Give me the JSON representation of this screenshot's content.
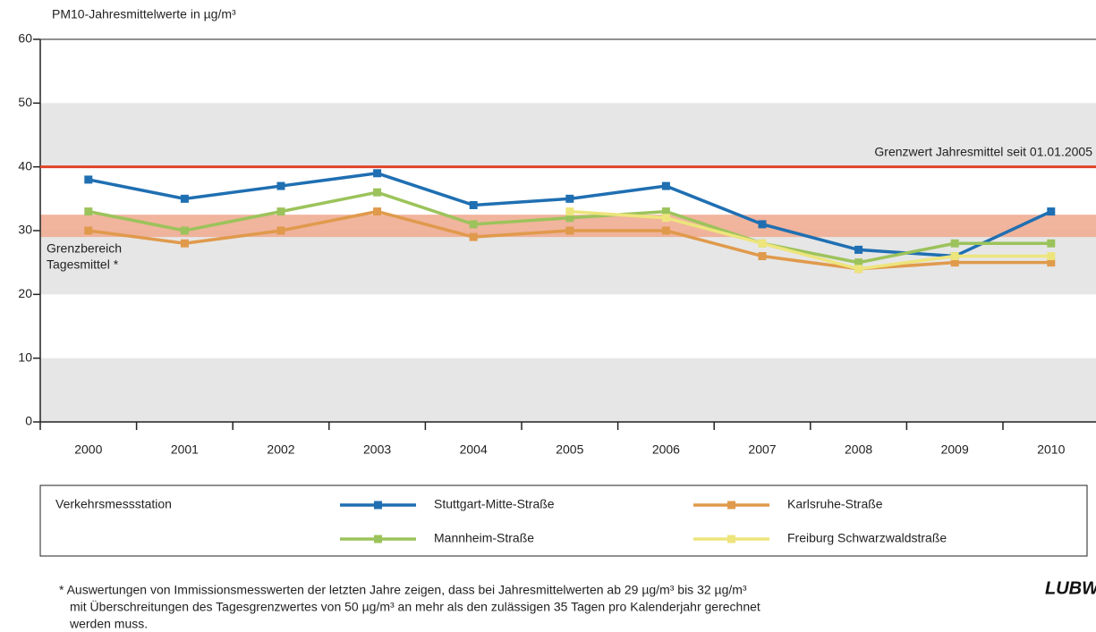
{
  "chart_data": {
    "type": "line",
    "y_axis_label": "PM10-Jahresmittelwerte in µg/m³",
    "categories": [
      "2000",
      "2001",
      "2002",
      "2003",
      "2004",
      "2005",
      "2006",
      "2007",
      "2008",
      "2009",
      "2010"
    ],
    "series": [
      {
        "name": "Stuttgart-Mitte-Straße",
        "color": "#1f6fb2",
        "values": [
          38,
          35,
          37,
          39,
          34,
          35,
          37,
          31,
          27,
          26,
          33
        ]
      },
      {
        "name": "Karlsruhe-Straße",
        "color": "#e09a4c",
        "values": [
          30,
          28,
          30,
          33,
          29,
          30,
          30,
          26,
          24,
          25,
          25
        ]
      },
      {
        "name": "Mannheim-Straße",
        "color": "#9cc35b",
        "values": [
          33,
          30,
          33,
          36,
          31,
          32,
          33,
          28,
          25,
          28,
          28
        ]
      },
      {
        "name": "Freiburg Schwarzwaldstraße",
        "color": "#ede57c",
        "values": [
          null,
          null,
          null,
          null,
          null,
          33,
          32,
          28,
          24,
          26,
          26
        ]
      }
    ],
    "ylim": [
      0,
      60
    ],
    "yticks": [
      0,
      10,
      20,
      30,
      40,
      50,
      60
    ],
    "limit_line": {
      "value": 40,
      "label": "Grenzwert Jahresmittel seit 01.01.2005",
      "color": "#e0442a"
    },
    "limit_band": {
      "range": [
        29,
        32.5
      ],
      "label": [
        "Grenzbereich",
        "Tagesmittel *"
      ],
      "color": "#f0ac92"
    },
    "legend_title": "Verkehrsmessstation",
    "footnote": [
      "* Auswertungen von Immissionsmesswerten der letzten Jahre zeigen, dass bei Jahresmittelwerten ab 29 µg/m³ bis 32 µg/m³",
      "mit Überschreitungen des Tagesgrenzwertes von 50 µg/m³ an mehr als den zulässigen 35 Tagen pro Kalenderjahr gerechnet",
      "werden muss."
    ],
    "logo": "LUBW"
  }
}
